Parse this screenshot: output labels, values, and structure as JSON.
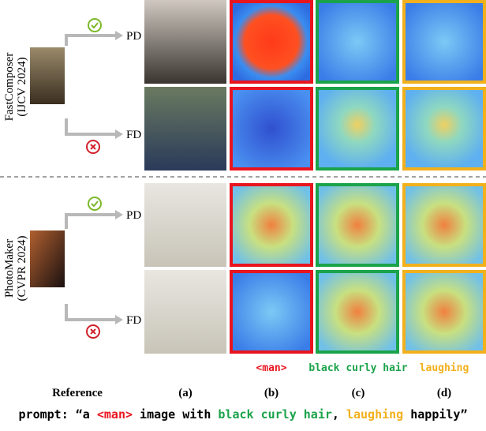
{
  "methods": [
    {
      "name": "FastComposer",
      "venue": "(IJCV 2024)",
      "rows": [
        "PD",
        "FD"
      ]
    },
    {
      "name": "PhotoMaker",
      "venue": "(CVPR 2024)",
      "rows": [
        "PD",
        "FD"
      ]
    }
  ],
  "token_labels": [
    "<man>",
    "black curly hair",
    "laughing"
  ],
  "column_labels": [
    "Reference",
    "(a)",
    "(b)",
    "(c)",
    "(d)"
  ],
  "prompt": [
    "prompt: “a ",
    "<man>",
    " image with ",
    "black curly hair",
    ", ",
    "laughing",
    " happily”"
  ]
}
